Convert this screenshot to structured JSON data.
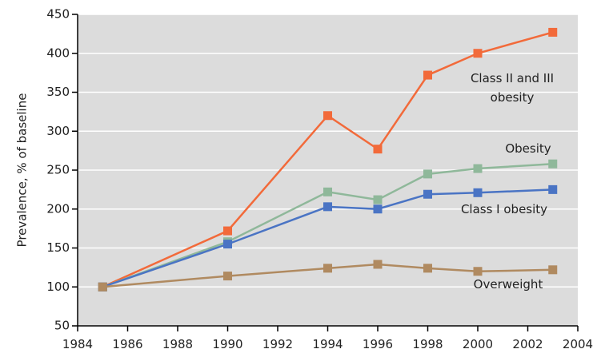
{
  "chart_data": {
    "type": "line",
    "y_label": "Prevalence, % of baseline",
    "x": [
      1985,
      1990,
      1994,
      1996,
      1998,
      2000,
      2003
    ],
    "series": [
      {
        "name": "Class II and III obesity",
        "color": "#f26a3a",
        "values": [
          100,
          172,
          320,
          277,
          372,
          400,
          427
        ]
      },
      {
        "name": "Obesity",
        "color": "#8fb89a",
        "values": [
          100,
          158,
          222,
          212,
          245,
          252,
          258
        ]
      },
      {
        "name": "Class I obesity",
        "color": "#4a74c4",
        "values": [
          100,
          155,
          203,
          200,
          219,
          221,
          225
        ]
      },
      {
        "name": "Overweight",
        "color": "#b08a60",
        "values": [
          100,
          114,
          124,
          129,
          124,
          120,
          122
        ]
      }
    ],
    "xlim": [
      1984,
      2004
    ],
    "xticks": [
      1984,
      1986,
      1988,
      1990,
      1992,
      1994,
      1996,
      1998,
      2000,
      2002,
      2004
    ],
    "ylim": [
      50,
      450
    ],
    "yticks": [
      50,
      100,
      150,
      200,
      250,
      300,
      350,
      400,
      450
    ],
    "grid": true,
    "background": "#dcdcdc"
  }
}
